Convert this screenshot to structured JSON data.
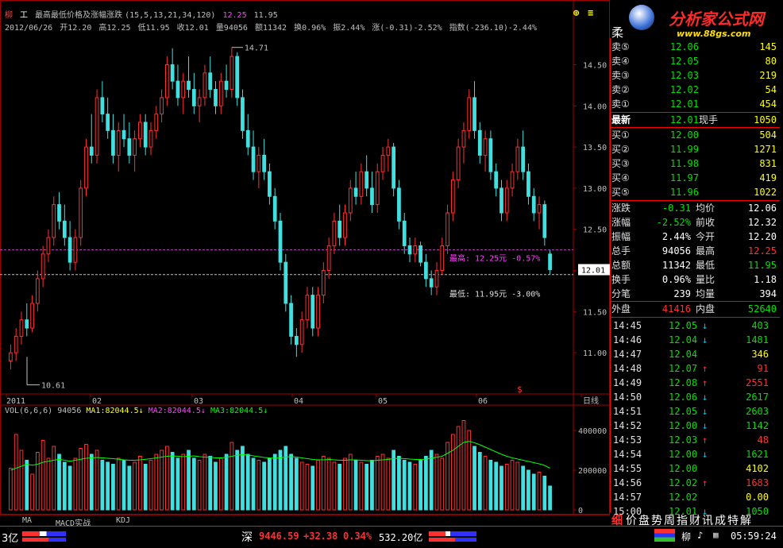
{
  "header": {
    "stock_tag": "柳",
    "indicator_icon": "工",
    "indicator_name": "最高最低价格及涨幅涨跌",
    "indicator_params": "(15,5,13,21,34,120)",
    "indicator_v1": "12.25",
    "indicator_v2": "11.95",
    "date": "2012/06/26",
    "open": "开12.20",
    "high": "高12.25",
    "low": "低11.95",
    "close": "收12.01",
    "volume": "量94056",
    "amount": "额11342",
    "turnover": "换0.96%",
    "amplitude": "振2.44%",
    "change": "涨(-0.31)-2.52%",
    "index_change": "指数(-236.10)-2.44%"
  },
  "chart_data": {
    "type": "candlestick",
    "price_ticks": [
      "14.50",
      "14.00",
      "13.50",
      "13.00",
      "12.50",
      "12.00",
      "11.50",
      "11.00"
    ],
    "price_ylim": [
      10.5,
      14.9
    ],
    "x_labels": [
      "2011",
      "02",
      "03",
      "04",
      "05",
      "06",
      "日线"
    ],
    "max_label": "14.71",
    "min_label": "10.61",
    "current_price": "12.01",
    "annot_high": "最高: 12.25元 -0.57%",
    "annot_low": "最低: 11.95元 -3.00%",
    "vol_ticks": [
      "400000",
      "200000",
      "0"
    ],
    "vol_ylim": [
      0,
      480000
    ],
    "candles": [
      [
        10.9,
        11.1,
        10.8,
        11.0
      ],
      [
        11.0,
        11.3,
        10.9,
        11.2
      ],
      [
        11.2,
        11.5,
        11.1,
        11.4
      ],
      [
        11.4,
        11.6,
        11.2,
        11.3
      ],
      [
        11.3,
        11.7,
        11.25,
        11.6
      ],
      [
        11.6,
        12.0,
        11.5,
        11.9
      ],
      [
        11.9,
        12.3,
        11.8,
        12.2
      ],
      [
        12.2,
        12.5,
        12.1,
        12.4
      ],
      [
        12.4,
        12.9,
        12.3,
        12.8
      ],
      [
        12.8,
        12.95,
        12.5,
        12.6
      ],
      [
        12.6,
        12.8,
        12.3,
        12.4
      ],
      [
        12.4,
        12.6,
        12.0,
        12.1
      ],
      [
        12.1,
        12.5,
        12.0,
        12.4
      ],
      [
        12.4,
        13.1,
        12.3,
        13.0
      ],
      [
        13.0,
        13.6,
        12.9,
        13.5
      ],
      [
        13.5,
        13.9,
        13.3,
        13.4
      ],
      [
        13.4,
        14.2,
        13.3,
        14.1
      ],
      [
        14.1,
        14.3,
        13.8,
        13.9
      ],
      [
        13.9,
        14.1,
        13.6,
        13.7
      ],
      [
        13.7,
        13.9,
        13.3,
        13.4
      ],
      [
        13.4,
        13.8,
        13.2,
        13.7
      ],
      [
        13.7,
        13.9,
        13.5,
        13.6
      ],
      [
        13.6,
        13.8,
        13.3,
        13.4
      ],
      [
        13.4,
        13.7,
        13.2,
        13.6
      ],
      [
        13.6,
        13.9,
        13.5,
        13.8
      ],
      [
        13.8,
        13.9,
        13.4,
        13.5
      ],
      [
        13.5,
        13.8,
        13.4,
        13.7
      ],
      [
        13.7,
        14.0,
        13.6,
        13.9
      ],
      [
        13.9,
        14.2,
        13.8,
        14.1
      ],
      [
        14.1,
        14.6,
        14.0,
        14.5
      ],
      [
        14.5,
        14.7,
        14.2,
        14.3
      ],
      [
        14.3,
        14.5,
        14.0,
        14.1
      ],
      [
        14.1,
        14.4,
        13.9,
        14.3
      ],
      [
        14.3,
        14.6,
        14.1,
        14.2
      ],
      [
        14.2,
        14.4,
        13.9,
        14.0
      ],
      [
        14.0,
        14.2,
        13.8,
        14.1
      ],
      [
        14.1,
        14.5,
        14.0,
        14.4
      ],
      [
        14.4,
        14.6,
        14.1,
        14.2
      ],
      [
        14.2,
        14.3,
        13.9,
        14.0
      ],
      [
        14.0,
        14.4,
        13.9,
        14.3
      ],
      [
        14.3,
        14.5,
        14.1,
        14.2
      ],
      [
        14.2,
        14.71,
        14.1,
        14.6
      ],
      [
        14.6,
        14.65,
        14.0,
        14.1
      ],
      [
        14.1,
        14.2,
        13.6,
        13.7
      ],
      [
        13.7,
        13.9,
        13.4,
        13.5
      ],
      [
        13.5,
        13.7,
        13.1,
        13.2
      ],
      [
        13.2,
        13.5,
        13.0,
        13.4
      ],
      [
        13.4,
        13.6,
        13.1,
        13.2
      ],
      [
        13.2,
        13.3,
        12.8,
        12.9
      ],
      [
        12.9,
        13.0,
        12.5,
        12.6
      ],
      [
        12.6,
        12.7,
        12.0,
        12.1
      ],
      [
        12.1,
        12.2,
        11.5,
        11.6
      ],
      [
        11.6,
        11.7,
        11.1,
        11.2
      ],
      [
        11.2,
        11.3,
        10.95,
        11.1
      ],
      [
        11.1,
        11.5,
        11.0,
        11.4
      ],
      [
        11.4,
        11.8,
        11.3,
        11.7
      ],
      [
        11.7,
        11.8,
        11.2,
        11.3
      ],
      [
        11.3,
        11.8,
        11.2,
        11.7
      ],
      [
        11.7,
        12.1,
        11.6,
        12.0
      ],
      [
        12.0,
        12.4,
        11.9,
        12.3
      ],
      [
        12.3,
        12.7,
        12.2,
        12.6
      ],
      [
        12.6,
        12.8,
        12.3,
        12.4
      ],
      [
        12.4,
        12.8,
        12.3,
        12.7
      ],
      [
        12.7,
        13.1,
        12.6,
        13.0
      ],
      [
        13.0,
        13.2,
        12.8,
        12.9
      ],
      [
        12.9,
        13.3,
        12.8,
        13.2
      ],
      [
        13.2,
        13.4,
        12.9,
        13.0
      ],
      [
        13.0,
        13.2,
        12.7,
        12.8
      ],
      [
        12.8,
        13.3,
        12.7,
        13.2
      ],
      [
        13.2,
        13.5,
        13.1,
        13.4
      ],
      [
        13.4,
        13.6,
        13.2,
        13.5
      ],
      [
        13.5,
        13.55,
        12.9,
        13.0
      ],
      [
        13.0,
        13.1,
        12.5,
        12.6
      ],
      [
        12.6,
        12.7,
        12.2,
        12.3
      ],
      [
        12.3,
        12.4,
        12.1,
        12.2
      ],
      [
        12.2,
        12.4,
        12.1,
        12.3
      ],
      [
        12.3,
        12.35,
        12.05,
        12.1
      ],
      [
        12.1,
        12.2,
        11.8,
        11.9
      ],
      [
        11.9,
        12.0,
        11.7,
        11.8
      ],
      [
        11.8,
        12.1,
        11.7,
        12.0
      ],
      [
        12.0,
        12.4,
        11.95,
        12.3
      ],
      [
        12.3,
        12.8,
        12.2,
        12.7
      ],
      [
        12.7,
        13.2,
        12.6,
        13.1
      ],
      [
        13.1,
        13.6,
        13.0,
        13.5
      ],
      [
        13.5,
        13.8,
        13.3,
        13.7
      ],
      [
        13.7,
        14.2,
        13.6,
        14.1
      ],
      [
        14.1,
        14.3,
        13.6,
        13.7
      ],
      [
        13.7,
        13.8,
        13.3,
        13.4
      ],
      [
        13.4,
        13.7,
        13.2,
        13.6
      ],
      [
        13.6,
        13.7,
        13.1,
        13.2
      ],
      [
        13.2,
        13.3,
        12.9,
        13.0
      ],
      [
        13.0,
        13.1,
        12.6,
        12.7
      ],
      [
        12.7,
        13.1,
        12.6,
        13.0
      ],
      [
        13.0,
        13.3,
        12.9,
        13.2
      ],
      [
        13.2,
        13.6,
        13.1,
        13.5
      ],
      [
        13.5,
        13.7,
        13.1,
        13.2
      ],
      [
        13.2,
        13.3,
        12.8,
        12.9
      ],
      [
        12.9,
        13.0,
        12.6,
        12.7
      ],
      [
        12.7,
        12.9,
        12.5,
        12.8
      ],
      [
        12.8,
        12.85,
        12.3,
        12.4
      ],
      [
        12.2,
        12.25,
        11.95,
        12.01
      ]
    ],
    "volumes": [
      210000,
      380000,
      300000,
      250000,
      180000,
      290000,
      350000,
      260000,
      320000,
      280000,
      240000,
      220000,
      260000,
      310000,
      330000,
      280000,
      300000,
      250000,
      240000,
      230000,
      260000,
      250000,
      220000,
      240000,
      270000,
      230000,
      250000,
      280000,
      300000,
      320000,
      290000,
      260000,
      280000,
      300000,
      260000,
      250000,
      280000,
      270000,
      240000,
      260000,
      280000,
      340000,
      300000,
      320000,
      280000,
      260000,
      250000,
      240000,
      260000,
      280000,
      300000,
      320000,
      280000,
      260000,
      240000,
      230000,
      220000,
      250000,
      270000,
      260000,
      240000,
      230000,
      260000,
      280000,
      250000,
      240000,
      230000,
      250000,
      270000,
      280000,
      260000,
      300000,
      270000,
      250000,
      240000,
      230000,
      250000,
      270000,
      300000,
      280000,
      260000,
      340000,
      380000,
      420000,
      450000,
      400000,
      320000,
      290000,
      270000,
      250000,
      240000,
      220000,
      230000,
      250000,
      240000,
      220000,
      200000,
      180000,
      190000,
      170000,
      120000
    ],
    "ma_volume": [
      200000,
      210000,
      220000,
      230000,
      225000,
      230000,
      240000,
      245000,
      250000,
      255000,
      250000,
      245000,
      250000,
      255000,
      260000,
      262000,
      264000,
      262000,
      260000,
      258000,
      255000,
      252000,
      250000,
      250000,
      252000,
      255000,
      258000,
      262000,
      266000,
      270000,
      272000,
      270000,
      268000,
      270000,
      272000,
      268000,
      266000,
      265000,
      262000,
      262000,
      265000,
      270000,
      275000,
      278000,
      276000,
      272000,
      268000,
      264000,
      262000,
      260000,
      262000,
      266000,
      268000,
      266000,
      262000,
      258000,
      254000,
      252000,
      252000,
      254000,
      252000,
      250000,
      250000,
      252000,
      252000,
      250000,
      248000,
      248000,
      250000,
      252000,
      254000,
      258000,
      260000,
      258000,
      256000,
      254000,
      254000,
      256000,
      260000,
      265000,
      270000,
      285000,
      300000,
      320000,
      340000,
      345000,
      338000,
      328000,
      316000,
      304000,
      292000,
      280000,
      270000,
      262000,
      256000,
      250000,
      244000,
      238000,
      232000,
      224000,
      210000
    ]
  },
  "volume_panel": {
    "label": "VOL(6,6,6)",
    "value": "94056",
    "ma1": "MA1:82044.5",
    "ma2": "MA2:82044.5",
    "ma3": "MA3:82044.5"
  },
  "tabs": [
    "MA",
    "MACD实战",
    "KDJ"
  ],
  "quote": {
    "title_left": "柔",
    "code_short": "000",
    "sell": [
      {
        "label": "卖⑤",
        "price": "12.06",
        "vol": "145"
      },
      {
        "label": "卖④",
        "price": "12.05",
        "vol": "80"
      },
      {
        "label": "卖③",
        "price": "12.03",
        "vol": "219"
      },
      {
        "label": "卖②",
        "price": "12.02",
        "vol": "54"
      },
      {
        "label": "卖①",
        "price": "12.01",
        "vol": "454"
      }
    ],
    "latest_label": "最新",
    "latest_price": "12.01",
    "now_hand_label": "现手",
    "now_hand": "1050",
    "buy": [
      {
        "label": "买①",
        "price": "12.00",
        "vol": "504"
      },
      {
        "label": "买②",
        "price": "11.99",
        "vol": "1271"
      },
      {
        "label": "买③",
        "price": "11.98",
        "vol": "831"
      },
      {
        "label": "买④",
        "price": "11.97",
        "vol": "419"
      },
      {
        "label": "买⑤",
        "price": "11.96",
        "vol": "1022"
      }
    ],
    "stats": [
      {
        "l1": "涨跌",
        "v1": "-0.31",
        "l2": "均价",
        "v2": "12.06"
      },
      {
        "l1": "涨幅",
        "v1": "-2.52%",
        "l2": "前收",
        "v2": "12.32"
      },
      {
        "l1": "振幅",
        "v1": "2.44%",
        "l2": "今开",
        "v2": "12.20"
      },
      {
        "l1": "总手",
        "v1": "94056",
        "l2": "最高",
        "v2": "12.25"
      },
      {
        "l1": "总额",
        "v1": "11342",
        "l2": "最低",
        "v2": "11.95"
      },
      {
        "l1": "换手",
        "v1": "0.96%",
        "l2": "量比",
        "v2": "1.18"
      },
      {
        "l1": "分笔",
        "v1": "239",
        "l2": "均量",
        "v2": "394"
      }
    ],
    "outer_label": "外盘",
    "outer": "41416",
    "inner_label": "内盘",
    "inner": "52640",
    "ticks": [
      {
        "t": "14:45",
        "p": "12.05",
        "d": "down",
        "v": "403"
      },
      {
        "t": "14:46",
        "p": "12.04",
        "d": "down",
        "v": "1481"
      },
      {
        "t": "14:47",
        "p": "12.04",
        "d": "",
        "v": "346"
      },
      {
        "t": "14:48",
        "p": "12.07",
        "d": "up",
        "v": "91"
      },
      {
        "t": "14:49",
        "p": "12.08",
        "d": "up",
        "v": "2551"
      },
      {
        "t": "14:50",
        "p": "12.06",
        "d": "down",
        "v": "2617"
      },
      {
        "t": "14:51",
        "p": "12.05",
        "d": "down",
        "v": "2603"
      },
      {
        "t": "14:52",
        "p": "12.00",
        "d": "down",
        "v": "1142"
      },
      {
        "t": "14:53",
        "p": "12.03",
        "d": "up",
        "v": "48"
      },
      {
        "t": "14:54",
        "p": "12.00",
        "d": "down",
        "v": "1621"
      },
      {
        "t": "14:55",
        "p": "12.00",
        "d": "",
        "v": "4102"
      },
      {
        "t": "14:56",
        "p": "12.02",
        "d": "up",
        "v": "1683"
      },
      {
        "t": "14:57",
        "p": "12.02",
        "d": "",
        "v": "0.00"
      },
      {
        "t": "15:00",
        "p": "12.01",
        "d": "down",
        "v": "1050"
      }
    ]
  },
  "logo": {
    "text": "分析家公式网",
    "url": "www.88gs.com"
  },
  "news_bar": {
    "stock_tag": "细",
    "items": "价盘势周指财讯成特解"
  },
  "statusbar": {
    "left_amount": "3亿",
    "market": "深",
    "index": "9446.59",
    "index_change": "+32.38",
    "index_pct": "0.34%",
    "amount": "532.20亿",
    "stock_tag": "柳",
    "time": "05:59:24"
  }
}
